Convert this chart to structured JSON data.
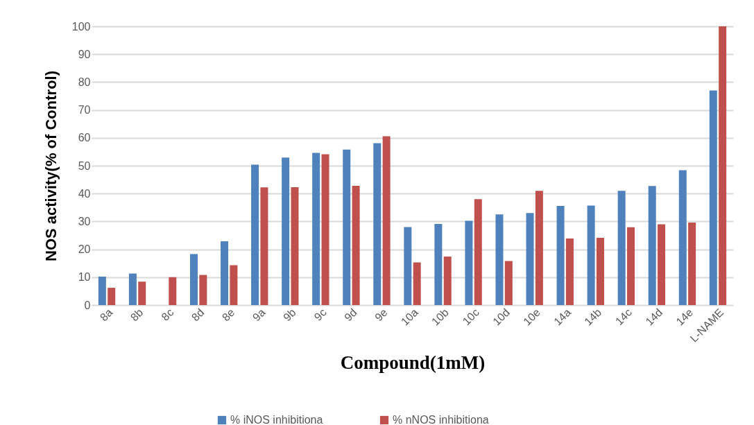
{
  "chart_data": {
    "type": "bar",
    "xlabel": "Compound(1mM)",
    "ylabel": "NOS activity(% of Control)",
    "categories": [
      "8a",
      "8b",
      "8c",
      "8d",
      "8e",
      "9a",
      "9b",
      "9c",
      "9d",
      "9e",
      "10a",
      "10b",
      "10c",
      "10d",
      "10e",
      "14a",
      "14b",
      "14c",
      "14d",
      "14e",
      "L-NAME"
    ],
    "series": [
      {
        "name": "% iNOS inhibitiona",
        "color": "#4f81bd",
        "values": [
          10.2,
          11.3,
          null,
          18.3,
          22.9,
          50.4,
          52.9,
          54.6,
          55.8,
          58.1,
          28.0,
          29.1,
          30.2,
          32.5,
          33.0,
          35.6,
          35.7,
          41.0,
          42.7,
          48.4,
          77.0
        ]
      },
      {
        "name": "% nNOS inhibitiona",
        "color": "#c0504d",
        "values": [
          6.2,
          8.4,
          10.0,
          10.8,
          14.3,
          42.2,
          42.3,
          54.1,
          42.8,
          60.6,
          15.3,
          17.4,
          38.0,
          15.8,
          41.0,
          23.9,
          24.1,
          27.9,
          29.0,
          29.6,
          100
        ]
      }
    ],
    "ylim": [
      0,
      100
    ],
    "yticks": [
      0,
      10,
      20,
      30,
      40,
      50,
      60,
      70,
      80,
      90,
      100
    ],
    "grid": "y",
    "legend": "bottom"
  }
}
